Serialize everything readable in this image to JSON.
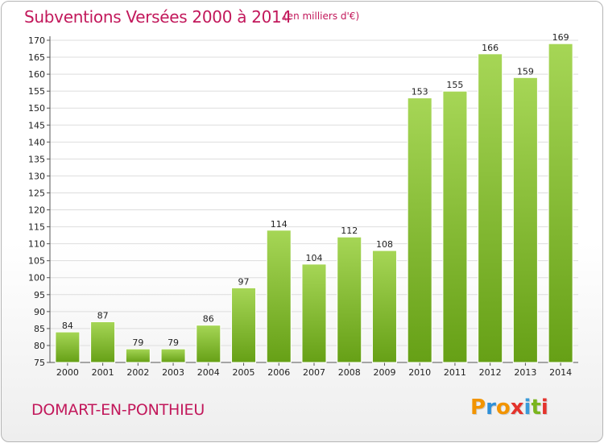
{
  "header": {
    "title": "Subventions Versées 2000 à 2014",
    "unit_note": "(en milliers d'€)"
  },
  "footer": {
    "commune": "DOMART-EN-PONTHIEU",
    "logo_text": "Proxiti"
  },
  "colors": {
    "accent": "#c2185b",
    "bar_light": "#9fd24a",
    "bar_dark": "#6aa51a",
    "grid": "#dddddd"
  },
  "chart_data": {
    "type": "bar",
    "title": "Subventions Versées 2000 à 2014",
    "subtitle": "(en milliers d'€)",
    "xlabel": "",
    "ylabel": "",
    "categories": [
      "2000",
      "2001",
      "2002",
      "2003",
      "2004",
      "2005",
      "2006",
      "2007",
      "2008",
      "2009",
      "2010",
      "2011",
      "2012",
      "2013",
      "2014"
    ],
    "values": [
      84,
      87,
      79,
      79,
      86,
      97,
      114,
      104,
      112,
      108,
      153,
      155,
      166,
      159,
      169
    ],
    "ylim": [
      75,
      170
    ],
    "ytick_step": 5,
    "grid": true,
    "legend": "none"
  }
}
